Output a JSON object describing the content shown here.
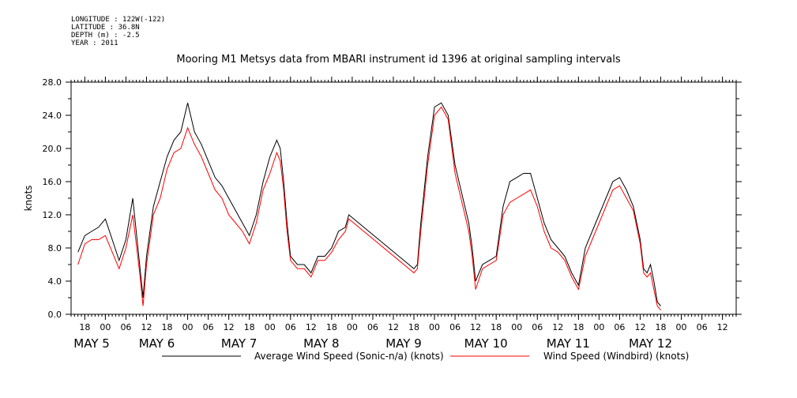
{
  "meta": {
    "longitude": "LONGITUDE : 122W(-122)",
    "latitude": "LATITUDE : 36.8N",
    "depth": "DEPTH (m) : -2.5",
    "year": "YEAR : 2011"
  },
  "chart_data": {
    "type": "line",
    "title": "Mooring M1 Metsys data from MBARI instrument id 1396 at original sampling intervals",
    "ylabel": "knots",
    "xlabel": "",
    "ylim": [
      0,
      28
    ],
    "y_ticks": [
      "0.0",
      "4.0",
      "8.0",
      "12.0",
      "16.0",
      "20.0",
      "24.0",
      "28.0"
    ],
    "x_range_hours": [
      -10,
      184
    ],
    "hour_ticks": [
      "18",
      "00",
      "06",
      "12",
      "18",
      "00",
      "06",
      "12",
      "18",
      "00",
      "06",
      "12",
      "18",
      "00",
      "06",
      "12",
      "18",
      "00",
      "06",
      "12",
      "18",
      "00",
      "06",
      "12",
      "18",
      "00",
      "06",
      "12",
      "18",
      "00",
      "06",
      "12"
    ],
    "date_labels": [
      "MAY  5",
      "MAY  6",
      "MAY  7",
      "MAY  8",
      "MAY  9",
      "MAY 10",
      "MAY 11",
      "MAY 12"
    ],
    "grid": false,
    "legend_position": "bottom",
    "x_units": "hours from May 5 00:00",
    "series": [
      {
        "name": "Average Wind Speed (Sonic-n/a) (knots)",
        "color": "#000000",
        "points": [
          [
            -8,
            7.5
          ],
          [
            -6,
            9.5
          ],
          [
            -4,
            10
          ],
          [
            -2,
            10.5
          ],
          [
            0,
            11.5
          ],
          [
            2,
            9
          ],
          [
            4,
            6.5
          ],
          [
            6,
            9
          ],
          [
            8,
            14
          ],
          [
            10,
            6
          ],
          [
            11,
            2
          ],
          [
            12,
            7
          ],
          [
            14,
            13
          ],
          [
            16,
            16
          ],
          [
            18,
            19
          ],
          [
            20,
            21
          ],
          [
            22,
            22
          ],
          [
            24,
            25.5
          ],
          [
            26,
            22
          ],
          [
            28,
            20.5
          ],
          [
            30,
            18.5
          ],
          [
            32,
            16.5
          ],
          [
            34,
            15.5
          ],
          [
            36,
            14
          ],
          [
            38,
            12.5
          ],
          [
            40,
            11
          ],
          [
            42,
            9.5
          ],
          [
            44,
            12
          ],
          [
            46,
            16
          ],
          [
            48,
            19
          ],
          [
            50,
            21
          ],
          [
            51,
            20
          ],
          [
            52,
            16
          ],
          [
            53,
            11
          ],
          [
            54,
            7
          ],
          [
            56,
            6
          ],
          [
            58,
            6
          ],
          [
            60,
            5
          ],
          [
            62,
            7
          ],
          [
            64,
            7
          ],
          [
            66,
            8
          ],
          [
            68,
            10
          ],
          [
            70,
            10.5
          ],
          [
            71,
            12
          ],
          [
            90,
            5.5
          ],
          [
            91,
            6
          ],
          [
            92,
            11
          ],
          [
            94,
            19
          ],
          [
            96,
            25
          ],
          [
            98,
            25.5
          ],
          [
            100,
            24
          ],
          [
            102,
            18
          ],
          [
            104,
            14.5
          ],
          [
            106,
            11
          ],
          [
            107,
            8
          ],
          [
            108,
            4
          ],
          [
            110,
            6
          ],
          [
            112,
            6.5
          ],
          [
            114,
            7
          ],
          [
            116,
            13
          ],
          [
            118,
            16
          ],
          [
            120,
            16.5
          ],
          [
            122,
            17
          ],
          [
            124,
            17
          ],
          [
            126,
            14
          ],
          [
            128,
            11
          ],
          [
            130,
            9
          ],
          [
            132,
            8
          ],
          [
            134,
            7
          ],
          [
            136,
            5
          ],
          [
            138,
            3.5
          ],
          [
            140,
            8
          ],
          [
            142,
            10
          ],
          [
            144,
            12
          ],
          [
            146,
            14
          ],
          [
            148,
            16
          ],
          [
            150,
            16.5
          ],
          [
            152,
            15
          ],
          [
            154,
            13
          ],
          [
            156,
            9
          ],
          [
            157,
            5.5
          ],
          [
            158,
            5
          ],
          [
            159,
            6
          ],
          [
            160,
            4
          ],
          [
            161,
            1.5
          ],
          [
            162,
            1
          ]
        ]
      },
      {
        "name": "Wind Speed (Windbird) (knots)",
        "color": "#ff0000",
        "points": [
          [
            -8,
            6
          ],
          [
            -6,
            8.5
          ],
          [
            -4,
            9
          ],
          [
            -2,
            9
          ],
          [
            0,
            9.5
          ],
          [
            2,
            7.5
          ],
          [
            4,
            5.5
          ],
          [
            6,
            8
          ],
          [
            8,
            12
          ],
          [
            10,
            5
          ],
          [
            11,
            1
          ],
          [
            12,
            6
          ],
          [
            14,
            12
          ],
          [
            16,
            14
          ],
          [
            18,
            17.5
          ],
          [
            20,
            19.5
          ],
          [
            22,
            20
          ],
          [
            24,
            22.5
          ],
          [
            26,
            20.5
          ],
          [
            28,
            19
          ],
          [
            30,
            17
          ],
          [
            32,
            15
          ],
          [
            34,
            14
          ],
          [
            36,
            12
          ],
          [
            38,
            11
          ],
          [
            40,
            10
          ],
          [
            42,
            8.5
          ],
          [
            44,
            11
          ],
          [
            46,
            15
          ],
          [
            48,
            17
          ],
          [
            50,
            19.5
          ],
          [
            51,
            18.5
          ],
          [
            52,
            15
          ],
          [
            53,
            10
          ],
          [
            54,
            6.5
          ],
          [
            56,
            5.5
          ],
          [
            58,
            5.5
          ],
          [
            60,
            4.5
          ],
          [
            62,
            6.5
          ],
          [
            64,
            6.5
          ],
          [
            66,
            7.5
          ],
          [
            68,
            9
          ],
          [
            70,
            10
          ],
          [
            71,
            11.5
          ],
          [
            90,
            5
          ],
          [
            91,
            5.5
          ],
          [
            92,
            10
          ],
          [
            94,
            18
          ],
          [
            96,
            24
          ],
          [
            98,
            25
          ],
          [
            100,
            23.5
          ],
          [
            102,
            17
          ],
          [
            104,
            13.5
          ],
          [
            106,
            10
          ],
          [
            107,
            7
          ],
          [
            108,
            3
          ],
          [
            110,
            5.5
          ],
          [
            112,
            6
          ],
          [
            114,
            6.5
          ],
          [
            116,
            12
          ],
          [
            118,
            13.5
          ],
          [
            120,
            14
          ],
          [
            122,
            14.5
          ],
          [
            124,
            15
          ],
          [
            126,
            13
          ],
          [
            128,
            10
          ],
          [
            130,
            8
          ],
          [
            132,
            7.5
          ],
          [
            134,
            6.5
          ],
          [
            136,
            4.5
          ],
          [
            138,
            3
          ],
          [
            140,
            7
          ],
          [
            142,
            9
          ],
          [
            144,
            11
          ],
          [
            146,
            13
          ],
          [
            148,
            15
          ],
          [
            150,
            15.5
          ],
          [
            152,
            14
          ],
          [
            154,
            12.5
          ],
          [
            156,
            8.5
          ],
          [
            157,
            5
          ],
          [
            158,
            4.5
          ],
          [
            159,
            5
          ],
          [
            160,
            3
          ],
          [
            161,
            1
          ],
          [
            162,
            0.5
          ]
        ]
      }
    ]
  }
}
